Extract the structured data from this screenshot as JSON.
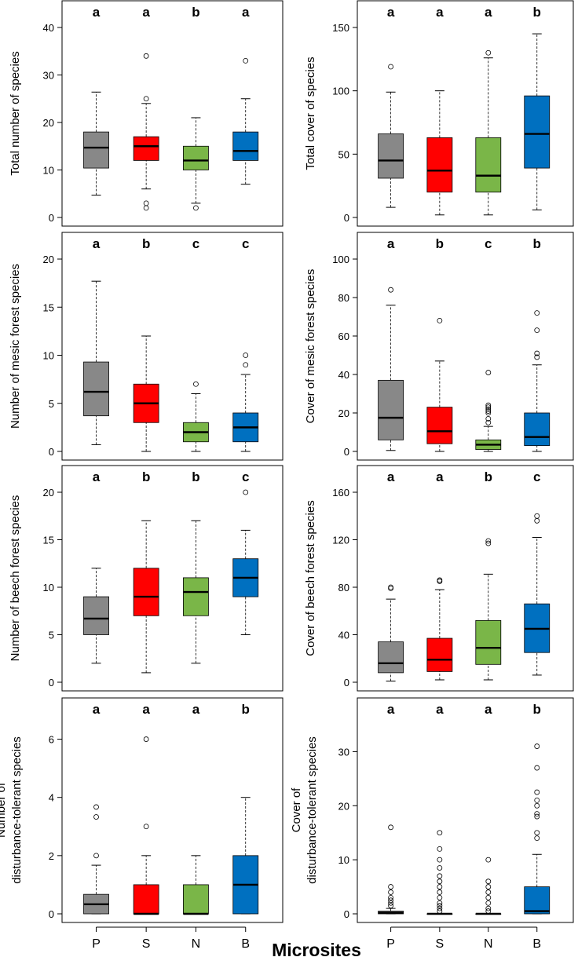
{
  "chart_data": {
    "type": "boxplot",
    "xlabel": "Microsites",
    "categories": [
      "P",
      "S",
      "N",
      "B"
    ],
    "colors": {
      "P": "#888888",
      "S": "#ff0000",
      "N": "#7ab648",
      "B": "#0070c0"
    },
    "panels": [
      {
        "id": "total-number",
        "ylabel": [
          "Total number of species"
        ],
        "ylim": [
          0,
          40
        ],
        "yticks": [
          0,
          10,
          20,
          30,
          40
        ],
        "letters": [
          "a",
          "a",
          "b",
          "a"
        ],
        "boxes": [
          {
            "min": 4.7,
            "q1": 10.4,
            "median": 14.7,
            "q3": 18,
            "max": 26.4,
            "outliers": []
          },
          {
            "min": 6,
            "q1": 12,
            "median": 15,
            "q3": 17,
            "max": 24,
            "outliers": [
              34,
              25,
              3,
              2
            ]
          },
          {
            "min": 3,
            "q1": 10,
            "median": 12,
            "q3": 15,
            "max": 21,
            "outliers": [
              2
            ]
          },
          {
            "min": 7,
            "q1": 12,
            "median": 14,
            "q3": 18,
            "max": 25,
            "outliers": [
              33
            ]
          }
        ]
      },
      {
        "id": "total-cover",
        "ylabel": [
          "Total cover of species"
        ],
        "ylim": [
          0,
          150
        ],
        "yticks": [
          0,
          50,
          100,
          150
        ],
        "letters": [
          "a",
          "a",
          "a",
          "b"
        ],
        "boxes": [
          {
            "min": 8,
            "q1": 31,
            "median": 45,
            "q3": 66,
            "max": 99,
            "outliers": [
              119
            ]
          },
          {
            "min": 2,
            "q1": 20,
            "median": 37,
            "q3": 63,
            "max": 100,
            "outliers": []
          },
          {
            "min": 2,
            "q1": 20,
            "median": 33,
            "q3": 63,
            "max": 126,
            "outliers": [
              130
            ]
          },
          {
            "min": 6,
            "q1": 39,
            "median": 66,
            "q3": 96,
            "max": 145,
            "outliers": []
          }
        ]
      },
      {
        "id": "mesic-number",
        "ylabel": [
          "Number of mesic forest species"
        ],
        "ylim": [
          0,
          20
        ],
        "yticks": [
          0,
          5,
          10,
          15,
          20
        ],
        "letters": [
          "a",
          "b",
          "c",
          "c"
        ],
        "boxes": [
          {
            "min": 0.7,
            "q1": 3.7,
            "median": 6.2,
            "q3": 9.3,
            "max": 17.7,
            "outliers": []
          },
          {
            "min": 0,
            "q1": 3,
            "median": 5,
            "q3": 7,
            "max": 12,
            "outliers": []
          },
          {
            "min": 0,
            "q1": 1,
            "median": 2,
            "q3": 3,
            "max": 6,
            "outliers": [
              7
            ]
          },
          {
            "min": 0,
            "q1": 1,
            "median": 2.5,
            "q3": 4,
            "max": 8,
            "outliers": [
              9,
              10
            ]
          }
        ]
      },
      {
        "id": "mesic-cover",
        "ylabel": [
          "Cover of mesic forest species"
        ],
        "ylim": [
          0,
          100
        ],
        "yticks": [
          0,
          20,
          40,
          60,
          80,
          100
        ],
        "letters": [
          "a",
          "b",
          "c",
          "b"
        ],
        "boxes": [
          {
            "min": 0.5,
            "q1": 6,
            "median": 17.5,
            "q3": 37,
            "max": 76,
            "outliers": [
              84
            ]
          },
          {
            "min": 0,
            "q1": 4,
            "median": 10.5,
            "q3": 23,
            "max": 47,
            "outliers": [
              68
            ]
          },
          {
            "min": 0,
            "q1": 1,
            "median": 3.5,
            "q3": 6,
            "max": 13,
            "outliers": [
              15,
              17,
              20,
              21,
              22,
              23,
              24,
              41
            ]
          },
          {
            "min": 0,
            "q1": 3,
            "median": 7.5,
            "q3": 20,
            "max": 45,
            "outliers": [
              49,
              51,
              63,
              72
            ]
          }
        ]
      },
      {
        "id": "beech-number",
        "ylabel": [
          "Number of beech forest species"
        ],
        "ylim": [
          0,
          20
        ],
        "yticks": [
          0,
          5,
          10,
          15,
          20
        ],
        "letters": [
          "a",
          "b",
          "b",
          "c"
        ],
        "boxes": [
          {
            "min": 2,
            "q1": 5,
            "median": 6.7,
            "q3": 9,
            "max": 12,
            "outliers": []
          },
          {
            "min": 1,
            "q1": 7,
            "median": 9,
            "q3": 12,
            "max": 17,
            "outliers": []
          },
          {
            "min": 2,
            "q1": 7,
            "median": 9.5,
            "q3": 11,
            "max": 17,
            "outliers": []
          },
          {
            "min": 5,
            "q1": 9,
            "median": 11,
            "q3": 13,
            "max": 16,
            "outliers": [
              20
            ]
          }
        ]
      },
      {
        "id": "beech-cover",
        "ylabel": [
          "Cover of beech forest species"
        ],
        "ylim": [
          0,
          160
        ],
        "yticks": [
          0,
          40,
          80,
          120,
          160
        ],
        "letters": [
          "a",
          "a",
          "b",
          "c"
        ],
        "boxes": [
          {
            "min": 1,
            "q1": 8,
            "median": 16,
            "q3": 34,
            "max": 70,
            "outliers": [
              79,
              80
            ]
          },
          {
            "min": 2,
            "q1": 9,
            "median": 19,
            "q3": 37,
            "max": 78,
            "outliers": [
              85,
              86
            ]
          },
          {
            "min": 2,
            "q1": 15,
            "median": 29,
            "q3": 52,
            "max": 91,
            "outliers": [
              117,
              119
            ]
          },
          {
            "min": 6,
            "q1": 25,
            "median": 45,
            "q3": 66,
            "max": 122,
            "outliers": [
              136,
              140
            ]
          }
        ]
      },
      {
        "id": "disturbance-number",
        "ylabel": [
          "Number of",
          "disturbance-tolerant species"
        ],
        "ylim": [
          0,
          6.5
        ],
        "yticks": [
          0,
          2,
          4,
          6
        ],
        "letters": [
          "a",
          "a",
          "a",
          "b"
        ],
        "boxes": [
          {
            "min": 0,
            "q1": 0,
            "median": 0.33,
            "q3": 0.67,
            "max": 1.67,
            "outliers": [
              2,
              3.33,
              3.67
            ]
          },
          {
            "min": 0,
            "q1": 0,
            "median": 0,
            "q3": 1,
            "max": 2,
            "outliers": [
              3,
              6
            ]
          },
          {
            "min": 0,
            "q1": 0,
            "median": 0,
            "q3": 1,
            "max": 2,
            "outliers": []
          },
          {
            "min": 0,
            "q1": 0,
            "median": 1,
            "q3": 2,
            "max": 4,
            "outliers": []
          }
        ]
      },
      {
        "id": "disturbance-cover",
        "ylabel": [
          "Cover of",
          "disturbance-tolerant species"
        ],
        "ylim": [
          0,
          35
        ],
        "yticks": [
          0,
          10,
          20,
          30
        ],
        "letters": [
          "a",
          "a",
          "a",
          "b"
        ],
        "boxes": [
          {
            "min": 0,
            "q1": 0,
            "median": 0.2,
            "q3": 0.5,
            "max": 1,
            "outliers": [
              1.5,
              2,
              2.5,
              3,
              4,
              5,
              16
            ]
          },
          {
            "min": 0,
            "q1": 0,
            "median": 0,
            "q3": 0,
            "max": 0,
            "outliers": [
              0.5,
              1,
              1.5,
              2,
              3,
              4,
              5,
              6,
              7,
              8.5,
              10,
              12,
              15
            ]
          },
          {
            "min": 0,
            "q1": 0,
            "median": 0,
            "q3": 0,
            "max": 0,
            "outliers": [
              0.5,
              1,
              2,
              3,
              4,
              5,
              6,
              10
            ]
          },
          {
            "min": 0,
            "q1": 0,
            "median": 0.5,
            "q3": 5,
            "max": 11,
            "outliers": [
              14,
              15,
              18,
              18.5,
              20,
              21,
              22.5,
              27,
              31
            ]
          }
        ]
      }
    ]
  }
}
